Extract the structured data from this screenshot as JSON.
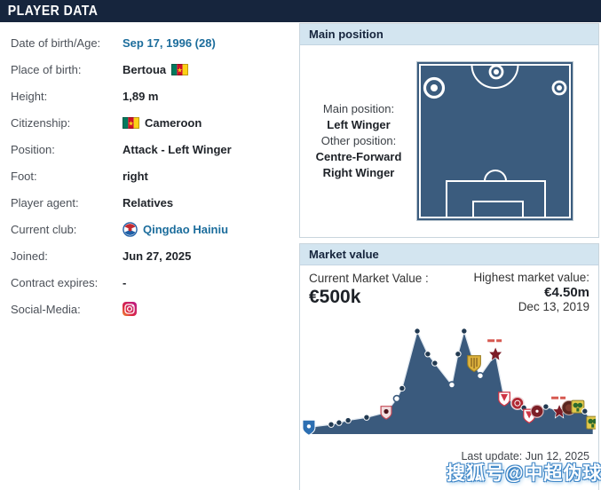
{
  "header": {
    "title": "PLAYER DATA"
  },
  "player_info": {
    "rows": [
      {
        "id": "dob",
        "label": "Date of birth/Age:",
        "value": "Sep 17, 1996 (28)",
        "type": "link"
      },
      {
        "id": "birthplace",
        "label": "Place of birth:",
        "value": "Bertoua",
        "type": "flag-after"
      },
      {
        "id": "height",
        "label": "Height:",
        "value": "1,89 m",
        "type": "plain"
      },
      {
        "id": "citizenship",
        "label": "Citizenship:",
        "value": "Cameroon",
        "type": "flag-before"
      },
      {
        "id": "position",
        "label": "Position:",
        "value": "Attack - Left Winger",
        "type": "plain"
      },
      {
        "id": "foot",
        "label": "Foot:",
        "value": "right",
        "type": "plain"
      },
      {
        "id": "agent",
        "label": "Player agent:",
        "value": "Relatives",
        "type": "plain"
      },
      {
        "id": "club",
        "label": "Current club:",
        "value": "Qingdao Hainiu",
        "type": "club-link"
      },
      {
        "id": "joined",
        "label": "Joined:",
        "value": "Jun 27, 2025",
        "type": "plain"
      },
      {
        "id": "contract",
        "label": "Contract expires:",
        "value": "-",
        "type": "plain"
      },
      {
        "id": "social",
        "label": "Social-Media:",
        "value": "",
        "type": "instagram"
      }
    ]
  },
  "main_position": {
    "header": "Main position",
    "main_label": "Main position:",
    "main_value": "Left Winger",
    "other_label": "Other position:",
    "other_values": [
      "Centre-Forward",
      "Right Winger"
    ]
  },
  "market_value": {
    "header": "Market value",
    "current_label": "Current Market Value :",
    "current_value": "€500k",
    "highest_label": "Highest market value:",
    "highest_value": "€4.50m",
    "highest_date": "Dec 13, 2019",
    "last_update": "Last update: Jun 12, 2025"
  },
  "chart_data": {
    "type": "area",
    "title": "Market value history",
    "unit": "€k",
    "ylim": [
      0,
      4500
    ],
    "grid": false,
    "legend": false,
    "highest_value_k": 4500,
    "current_value_k": 500,
    "points": [
      {
        "x": 0.021,
        "v": 300,
        "icon": "blue-shield"
      },
      {
        "x": 0.097,
        "v": 420
      },
      {
        "x": 0.124,
        "v": 500
      },
      {
        "x": 0.155,
        "v": 600
      },
      {
        "x": 0.218,
        "v": 730
      },
      {
        "x": 0.285,
        "v": 950,
        "icon": "red-ring-shield"
      },
      {
        "x": 0.321,
        "v": 1550,
        "open": true
      },
      {
        "x": 0.339,
        "v": 2000
      },
      {
        "x": 0.391,
        "v": 4500
      },
      {
        "x": 0.427,
        "v": 3500
      },
      {
        "x": 0.451,
        "v": 3100
      },
      {
        "x": 0.509,
        "v": 2150,
        "open": true
      },
      {
        "x": 0.53,
        "v": 3500
      },
      {
        "x": 0.551,
        "v": 4500
      },
      {
        "x": 0.585,
        "v": 3100,
        "icon": "yellow-shield"
      },
      {
        "x": 0.606,
        "v": 2550,
        "open": true
      },
      {
        "x": 0.658,
        "v": 3500,
        "icon": "darkred-star",
        "loan": true
      },
      {
        "x": 0.688,
        "v": 1550,
        "icon": "red-white-shield"
      },
      {
        "x": 0.733,
        "v": 1350,
        "icon": "red-circle"
      },
      {
        "x": 0.755,
        "v": 1150
      },
      {
        "x": 0.773,
        "v": 800,
        "icon": "red-white-shield"
      },
      {
        "x": 0.8,
        "v": 1000,
        "icon": "darkred-circle"
      },
      {
        "x": 0.83,
        "v": 1200
      },
      {
        "x": 0.876,
        "v": 1000,
        "icon": "darkred-star",
        "loan": true
      },
      {
        "x": 0.909,
        "v": 1150,
        "icon": "brown-circle"
      },
      {
        "x": 0.939,
        "v": 1200,
        "icon": "green-square"
      },
      {
        "x": 0.963,
        "v": 1000
      },
      {
        "x": 0.99,
        "v": 500,
        "icon": "green-square"
      }
    ]
  },
  "watermark": "搜狐号@中超伪球迷",
  "colors": {
    "header_bg": "#16253d",
    "section_bg": "#d3e5f0",
    "link": "#1c6d9c",
    "pitch_fill": "#3b5c7e",
    "chart_fill": "#3a5a7d"
  }
}
